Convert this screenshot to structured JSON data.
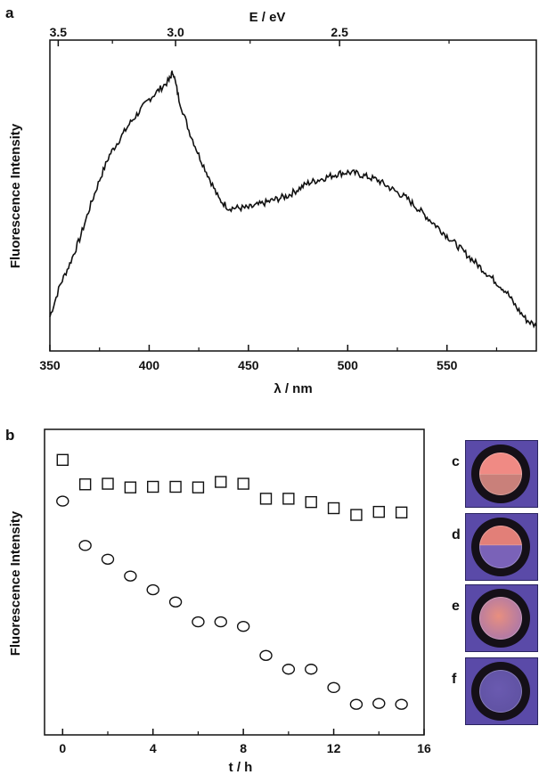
{
  "panels": {
    "a": "a",
    "b": "b",
    "c": "c",
    "d": "d",
    "e": "e",
    "f": "f"
  },
  "chart_data": [
    {
      "type": "line",
      "panel": "a",
      "title": "",
      "xlabel": "λ / nm",
      "ylabel": "Fluorescence Intensity",
      "top_xlabel": "E / eV",
      "xlim": [
        350,
        595
      ],
      "ylim": [
        0,
        1
      ],
      "xticks": [
        350,
        400,
        450,
        500,
        550
      ],
      "top_ticks": [
        3.5,
        3.0,
        2.5
      ],
      "top_tick_wavelengths": [
        354.2,
        413.3,
        495.9
      ],
      "top_minor_ticks": [
        3.25,
        2.75,
        2.25
      ],
      "y_tick_labels": false,
      "series": [
        {
          "x": [
            350,
            355,
            360,
            365,
            370,
            375,
            380,
            385,
            390,
            395,
            400,
            405,
            410,
            412,
            415,
            420,
            425,
            430,
            435,
            440,
            445,
            450,
            455,
            460,
            465,
            470,
            475,
            480,
            485,
            490,
            495,
            500,
            505,
            510,
            515,
            520,
            525,
            530,
            535,
            540,
            545,
            550,
            555,
            560,
            565,
            570,
            575,
            580,
            585,
            590,
            595
          ],
          "y": [
            0.11,
            0.21,
            0.28,
            0.36,
            0.46,
            0.55,
            0.63,
            0.68,
            0.73,
            0.77,
            0.81,
            0.84,
            0.87,
            0.9,
            0.81,
            0.71,
            0.63,
            0.56,
            0.49,
            0.46,
            0.46,
            0.46,
            0.47,
            0.48,
            0.49,
            0.5,
            0.52,
            0.54,
            0.55,
            0.56,
            0.57,
            0.575,
            0.57,
            0.56,
            0.55,
            0.53,
            0.51,
            0.49,
            0.46,
            0.43,
            0.4,
            0.37,
            0.34,
            0.31,
            0.28,
            0.25,
            0.22,
            0.19,
            0.14,
            0.1,
            0.08
          ]
        }
      ]
    },
    {
      "type": "scatter",
      "panel": "b",
      "title": "",
      "xlabel": "t / h",
      "ylabel": "Fluorescence Intensity",
      "xlim": [
        -0.8,
        16
      ],
      "ylim": [
        0,
        1
      ],
      "xticks": [
        0,
        4,
        8,
        12,
        16
      ],
      "y_tick_labels": false,
      "series": [
        {
          "marker": "square",
          "x": [
            0,
            1,
            2,
            3,
            4,
            5,
            6,
            7,
            8,
            9,
            10,
            11,
            12,
            13,
            14,
            15
          ],
          "y": [
            0.9,
            0.82,
            0.822,
            0.81,
            0.812,
            0.812,
            0.81,
            0.828,
            0.822,
            0.773,
            0.773,
            0.762,
            0.742,
            0.72,
            0.73,
            0.728
          ]
        },
        {
          "marker": "circle",
          "x": [
            0,
            1,
            2,
            3,
            4,
            5,
            6,
            7,
            8,
            9,
            10,
            11,
            12,
            13,
            14,
            15
          ],
          "y": [
            0.765,
            0.62,
            0.575,
            0.52,
            0.475,
            0.435,
            0.37,
            0.37,
            0.355,
            0.26,
            0.215,
            0.215,
            0.155,
            0.1,
            0.103,
            0.1
          ]
        }
      ]
    }
  ],
  "photos": [
    {
      "id": "c",
      "tag": "c",
      "colors": {
        "top": "#f08a84",
        "bottom": "#c9807a"
      },
      "fill_level": 0.5
    },
    {
      "id": "d",
      "tag": "d",
      "colors": {
        "top": "#e27f78",
        "bottom": "#7a62b8"
      },
      "fill_level": 0.45
    },
    {
      "id": "e",
      "tag": "e",
      "colors": {
        "top": "#e88f7f",
        "bottom": "#9a70b5"
      },
      "fill_level": 1.0
    },
    {
      "id": "f",
      "tag": "f",
      "colors": {
        "top": "#6a5ab0",
        "bottom": "#5c4f9e"
      },
      "fill_level": 0.0
    }
  ]
}
